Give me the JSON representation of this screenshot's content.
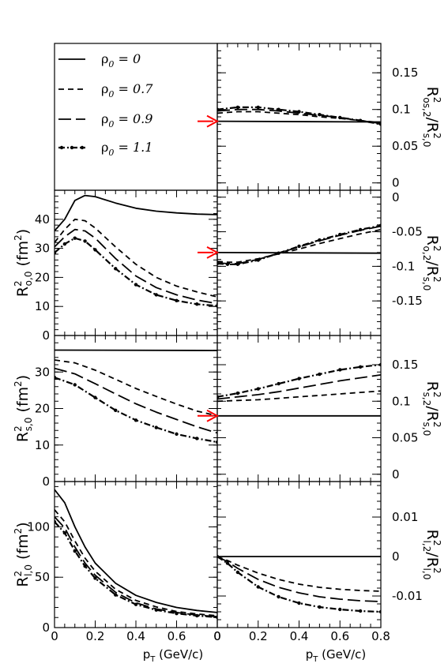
{
  "legend": {
    "symbol": "ρ",
    "subscript": "0",
    "entries": [
      {
        "value": "0",
        "style": "solid"
      },
      {
        "value": "0.7",
        "style": "short-dash"
      },
      {
        "value": "0.9",
        "style": "long-dash"
      },
      {
        "value": "1.1",
        "style": "dash-dot"
      }
    ]
  },
  "x_axis": {
    "label_main": "p",
    "label_sub": "T",
    "label_rest": " (GeV/c)",
    "ticks_left": [
      "0",
      "0.2",
      "0.4",
      "0.6",
      "0"
    ],
    "ticks_right": [
      "0",
      "0.2",
      "0.4",
      "0.6",
      "0.8"
    ],
    "range": [
      0,
      0.8
    ]
  },
  "colors": {
    "arrow": "#ff0000",
    "line": "#000000"
  },
  "chart_data": [
    {
      "id": "os2",
      "type": "line",
      "ylabel": "R²os,2/R²s,0",
      "ylabel_parts": {
        "num": "R",
        "num_sup": "2",
        "num_sub": "os,2",
        "sep": "/",
        "den": "R",
        "den_sup": "2",
        "den_sub": "s,0"
      },
      "ylim": [
        -0.01,
        0.19
      ],
      "yticks": [
        0,
        0.05,
        0.1,
        0.15
      ],
      "ytick_labels": [
        "0",
        "0.05",
        "0.1",
        "0.15"
      ],
      "arrow_y": 0.084,
      "series": [
        {
          "style": "solid",
          "x": [
            0,
            0.8
          ],
          "y": [
            0.084,
            0.083
          ]
        },
        {
          "style": "short-dash",
          "x": [
            0,
            0.1,
            0.2,
            0.3,
            0.4,
            0.5,
            0.6,
            0.7,
            0.8
          ],
          "y": [
            0.095,
            0.097,
            0.097,
            0.095,
            0.093,
            0.09,
            0.088,
            0.085,
            0.082
          ]
        },
        {
          "style": "long-dash",
          "x": [
            0,
            0.1,
            0.2,
            0.3,
            0.4,
            0.5,
            0.6,
            0.7,
            0.8
          ],
          "y": [
            0.098,
            0.1,
            0.1,
            0.098,
            0.095,
            0.092,
            0.089,
            0.085,
            0.081
          ]
        },
        {
          "style": "dash-dot",
          "x": [
            0,
            0.1,
            0.2,
            0.3,
            0.4,
            0.5,
            0.6,
            0.7,
            0.8
          ],
          "y": [
            0.1,
            0.103,
            0.103,
            0.1,
            0.097,
            0.093,
            0.089,
            0.085,
            0.08
          ]
        }
      ]
    },
    {
      "id": "o0",
      "type": "line",
      "ylabel": "R²o,0 (fm²)",
      "ylabel_parts": {
        "main": "R",
        "sup": "2",
        "sub": "o,0",
        "unit": "(fm",
        "unit_sup": "2",
        "unit_end": ")"
      },
      "ylim": [
        0,
        50
      ],
      "yticks": [
        0,
        10,
        20,
        30,
        40
      ],
      "ytick_labels": [
        "0",
        "10",
        "20",
        "30",
        "40"
      ],
      "series": [
        {
          "style": "solid",
          "x": [
            0,
            0.05,
            0.1,
            0.15,
            0.2,
            0.3,
            0.4,
            0.5,
            0.6,
            0.7,
            0.8
          ],
          "y": [
            36,
            40,
            46.5,
            48.2,
            47.8,
            45.6,
            43.8,
            42.8,
            42.2,
            41.8,
            41.6
          ]
        },
        {
          "style": "short-dash",
          "x": [
            0,
            0.05,
            0.1,
            0.15,
            0.2,
            0.3,
            0.4,
            0.5,
            0.6,
            0.7,
            0.8
          ],
          "y": [
            32,
            36.5,
            40,
            39.5,
            37,
            30.5,
            24.5,
            20,
            17,
            15,
            13.3
          ]
        },
        {
          "style": "long-dash",
          "x": [
            0,
            0.05,
            0.1,
            0.15,
            0.2,
            0.3,
            0.4,
            0.5,
            0.6,
            0.7,
            0.8
          ],
          "y": [
            30.5,
            34,
            36.5,
            36,
            33.5,
            26.5,
            20.5,
            16.5,
            14,
            12.2,
            11
          ]
        },
        {
          "style": "dash-dot",
          "x": [
            0,
            0.05,
            0.1,
            0.15,
            0.2,
            0.3,
            0.4,
            0.5,
            0.6,
            0.7,
            0.8
          ],
          "y": [
            28.5,
            31.5,
            33.5,
            32.5,
            29.5,
            23,
            17.5,
            14,
            12,
            10.8,
            10.2
          ]
        }
      ]
    },
    {
      "id": "o2",
      "type": "line",
      "ylabel": "R²o,2/R²s,0",
      "ylabel_parts": {
        "num": "R",
        "num_sup": "2",
        "num_sub": "o,2",
        "sep": "/",
        "den": "R",
        "den_sup": "2",
        "den_sub": "s,0"
      },
      "ylim": [
        -0.2,
        0.01
      ],
      "yticks": [
        -0.15,
        -0.1,
        -0.05,
        0
      ],
      "ytick_labels": [
        "-0.15",
        "-0.1",
        "-0.05",
        "0"
      ],
      "arrow_y": -0.08,
      "series": [
        {
          "style": "solid",
          "x": [
            0,
            0.8
          ],
          "y": [
            -0.08,
            -0.081
          ]
        },
        {
          "style": "short-dash",
          "x": [
            0,
            0.05,
            0.1,
            0.2,
            0.3,
            0.4,
            0.5,
            0.6,
            0.7,
            0.8
          ],
          "y": [
            -0.093,
            -0.094,
            -0.094,
            -0.089,
            -0.082,
            -0.075,
            -0.067,
            -0.06,
            -0.053,
            -0.047
          ]
        },
        {
          "style": "long-dash",
          "x": [
            0,
            0.05,
            0.1,
            0.2,
            0.3,
            0.4,
            0.5,
            0.6,
            0.7,
            0.8
          ],
          "y": [
            -0.095,
            -0.096,
            -0.096,
            -0.09,
            -0.081,
            -0.072,
            -0.063,
            -0.055,
            -0.048,
            -0.042
          ]
        },
        {
          "style": "dash-dot",
          "x": [
            0,
            0.05,
            0.1,
            0.2,
            0.3,
            0.4,
            0.5,
            0.6,
            0.7,
            0.8
          ],
          "y": [
            -0.096,
            -0.097,
            -0.097,
            -0.091,
            -0.081,
            -0.071,
            -0.062,
            -0.054,
            -0.047,
            -0.041
          ]
        }
      ]
    },
    {
      "id": "s0",
      "type": "line",
      "ylabel": "R²s,0 (fm²)",
      "ylabel_parts": {
        "main": "R",
        "sup": "2",
        "sub": "s,0",
        "unit": "(fm",
        "unit_sup": "2",
        "unit_end": ")"
      },
      "ylim": [
        0,
        40
      ],
      "yticks": [
        0,
        10,
        20,
        30
      ],
      "ytick_labels": [
        "0",
        "10",
        "20",
        "30"
      ],
      "series": [
        {
          "style": "solid",
          "x": [
            0,
            0.8
          ],
          "y": [
            36,
            35.9
          ]
        },
        {
          "style": "short-dash",
          "x": [
            0,
            0.1,
            0.2,
            0.3,
            0.4,
            0.5,
            0.6,
            0.7,
            0.8
          ],
          "y": [
            33.3,
            32.5,
            30.5,
            28,
            25.5,
            23.3,
            21.2,
            19.3,
            18
          ]
        },
        {
          "style": "long-dash",
          "x": [
            0,
            0.1,
            0.2,
            0.3,
            0.4,
            0.5,
            0.6,
            0.7,
            0.8
          ],
          "y": [
            31,
            29.5,
            26.8,
            24,
            21.3,
            19,
            17,
            15,
            13.3
          ]
        },
        {
          "style": "dash-dot",
          "x": [
            0,
            0.1,
            0.2,
            0.3,
            0.4,
            0.5,
            0.6,
            0.7,
            0.8
          ],
          "y": [
            28.5,
            26.5,
            23,
            19.5,
            16.8,
            14.8,
            13,
            11.8,
            10.8
          ]
        }
      ]
    },
    {
      "id": "s2",
      "type": "line",
      "ylabel": "R²s,2/R²s,0",
      "ylabel_parts": {
        "num": "R",
        "num_sup": "2",
        "num_sub": "s,2",
        "sep": "/",
        "den": "R",
        "den_sup": "2",
        "den_sub": "s,0"
      },
      "ylim": [
        -0.01,
        0.19
      ],
      "yticks": [
        0,
        0.05,
        0.1,
        0.15
      ],
      "ytick_labels": [
        "0",
        "0.05",
        "0.1",
        "0.15"
      ],
      "arrow_y": 0.08,
      "series": [
        {
          "style": "solid",
          "x": [
            0,
            0.8
          ],
          "y": [
            0.08,
            0.08
          ]
        },
        {
          "style": "short-dash",
          "x": [
            0,
            0.1,
            0.2,
            0.3,
            0.4,
            0.5,
            0.6,
            0.7,
            0.8
          ],
          "y": [
            0.1,
            0.101,
            0.102,
            0.104,
            0.106,
            0.108,
            0.11,
            0.112,
            0.114
          ]
        },
        {
          "style": "long-dash",
          "x": [
            0,
            0.1,
            0.2,
            0.3,
            0.4,
            0.5,
            0.6,
            0.7,
            0.8
          ],
          "y": [
            0.103,
            0.106,
            0.109,
            0.113,
            0.118,
            0.123,
            0.128,
            0.132,
            0.136
          ]
        },
        {
          "style": "dash-dot",
          "x": [
            0,
            0.1,
            0.2,
            0.3,
            0.4,
            0.5,
            0.6,
            0.7,
            0.8
          ],
          "y": [
            0.106,
            0.111,
            0.117,
            0.124,
            0.131,
            0.137,
            0.143,
            0.147,
            0.15
          ]
        }
      ]
    },
    {
      "id": "l0",
      "type": "line",
      "ylabel": "R²l,0 (fm²)",
      "ylabel_parts": {
        "main": "R",
        "sup": "2",
        "sub": "l,0",
        "unit": "(fm",
        "unit_sup": "2",
        "unit_end": ")"
      },
      "ylim": [
        0,
        145
      ],
      "yticks": [
        0,
        50,
        100
      ],
      "ytick_labels": [
        "0",
        "50",
        "100"
      ],
      "series": [
        {
          "style": "solid",
          "x": [
            0,
            0.05,
            0.1,
            0.15,
            0.2,
            0.3,
            0.4,
            0.5,
            0.6,
            0.7,
            0.8
          ],
          "y": [
            137,
            124,
            100,
            80,
            64,
            44,
            32,
            25,
            20,
            17,
            15
          ]
        },
        {
          "style": "short-dash",
          "x": [
            0,
            0.05,
            0.1,
            0.15,
            0.2,
            0.3,
            0.4,
            0.5,
            0.6,
            0.7,
            0.8
          ],
          "y": [
            117,
            105,
            86,
            69,
            56,
            38,
            27,
            20.5,
            16,
            13.5,
            11.8
          ]
        },
        {
          "style": "long-dash",
          "x": [
            0,
            0.05,
            0.1,
            0.15,
            0.2,
            0.3,
            0.4,
            0.5,
            0.6,
            0.7,
            0.8
          ],
          "y": [
            110,
            99,
            80,
            64,
            52,
            35,
            24.5,
            18.5,
            15,
            12.5,
            10.8
          ]
        },
        {
          "style": "dash-dot",
          "x": [
            0,
            0.05,
            0.1,
            0.15,
            0.2,
            0.3,
            0.4,
            0.5,
            0.6,
            0.7,
            0.8
          ],
          "y": [
            105,
            94,
            76,
            61,
            49,
            32.5,
            23,
            17.5,
            14,
            11.8,
            10.3
          ]
        }
      ]
    },
    {
      "id": "l2",
      "type": "line",
      "ylabel": "R²l,2/R²l,0",
      "ylabel_parts": {
        "num": "R",
        "num_sup": "2",
        "num_sub": "l,2",
        "sep": "/",
        "den": "R",
        "den_sup": "2",
        "den_sub": "l,0"
      },
      "ylim": [
        -0.018,
        0.019
      ],
      "yticks": [
        -0.01,
        0,
        0.01
      ],
      "ytick_labels": [
        "-0.01",
        "0",
        "0.01"
      ],
      "series": [
        {
          "style": "solid",
          "x": [
            0,
            0.8
          ],
          "y": [
            0,
            0
          ]
        },
        {
          "style": "short-dash",
          "x": [
            0,
            0.05,
            0.1,
            0.2,
            0.3,
            0.4,
            0.5,
            0.6,
            0.7,
            0.8
          ],
          "y": [
            0,
            -0.001,
            -0.0022,
            -0.0042,
            -0.0058,
            -0.007,
            -0.0078,
            -0.0083,
            -0.0086,
            -0.0088
          ]
        },
        {
          "style": "long-dash",
          "x": [
            0,
            0.05,
            0.1,
            0.2,
            0.3,
            0.4,
            0.5,
            0.6,
            0.7,
            0.8
          ],
          "y": [
            0,
            -0.0013,
            -0.003,
            -0.0058,
            -0.0078,
            -0.0092,
            -0.0102,
            -0.0108,
            -0.0112,
            -0.0114
          ]
        },
        {
          "style": "dash-dot",
          "x": [
            0,
            0.05,
            0.1,
            0.2,
            0.3,
            0.4,
            0.5,
            0.6,
            0.7,
            0.8
          ],
          "y": [
            0,
            -0.0017,
            -0.004,
            -0.0077,
            -0.0102,
            -0.0118,
            -0.0128,
            -0.0134,
            -0.0138,
            -0.014
          ]
        }
      ]
    }
  ]
}
